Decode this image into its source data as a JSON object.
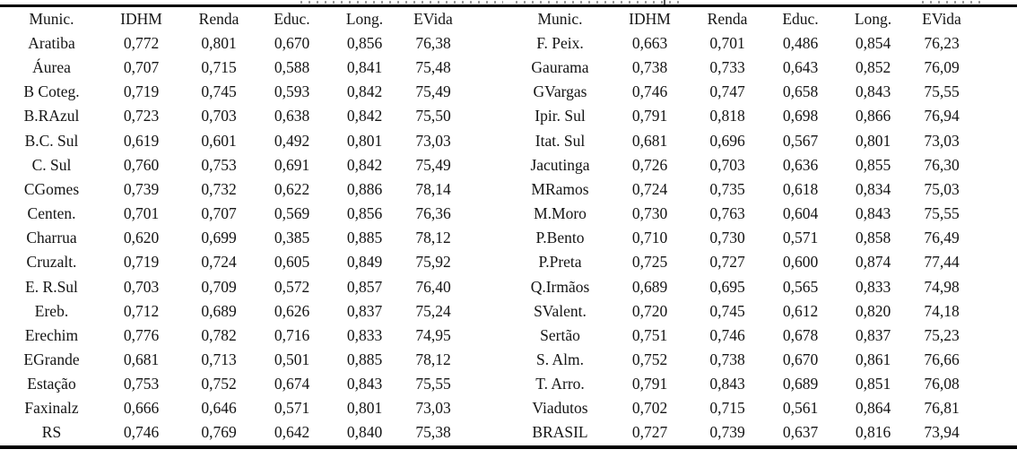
{
  "table": {
    "headers": [
      "Munic.",
      "IDHM",
      "Renda",
      "Educ.",
      "Long.",
      "EVida"
    ],
    "left": [
      [
        "Aratiba",
        "0,772",
        "0,801",
        "0,670",
        "0,856",
        "76,38"
      ],
      [
        "Áurea",
        "0,707",
        "0,715",
        "0,588",
        "0,841",
        "75,48"
      ],
      [
        "B Coteg.",
        "0,719",
        "0,745",
        "0,593",
        "0,842",
        "75,49"
      ],
      [
        "B.RAzul",
        "0,723",
        "0,703",
        "0,638",
        "0,842",
        "75,50"
      ],
      [
        "B.C. Sul",
        "0,619",
        "0,601",
        "0,492",
        "0,801",
        "73,03"
      ],
      [
        "C. Sul",
        "0,760",
        "0,753",
        "0,691",
        "0,842",
        "75,49"
      ],
      [
        "CGomes",
        "0,739",
        "0,732",
        "0,622",
        "0,886",
        "78,14"
      ],
      [
        "Centen.",
        "0,701",
        "0,707",
        "0,569",
        "0,856",
        "76,36"
      ],
      [
        "Charrua",
        "0,620",
        "0,699",
        "0,385",
        "0,885",
        "78,12"
      ],
      [
        "Cruzalt.",
        "0,719",
        "0,724",
        "0,605",
        "0,849",
        "75,92"
      ],
      [
        "E. R.Sul",
        "0,703",
        "0,709",
        "0,572",
        "0,857",
        "76,40"
      ],
      [
        "Ereb.",
        "0,712",
        "0,689",
        "0,626",
        "0,837",
        "75,24"
      ],
      [
        "Erechim",
        "0,776",
        "0,782",
        "0,716",
        "0,833",
        "74,95"
      ],
      [
        "EGrande",
        "0,681",
        "0,713",
        "0,501",
        "0,885",
        "78,12"
      ],
      [
        "Estação",
        "0,753",
        "0,752",
        "0,674",
        "0,843",
        "75,55"
      ],
      [
        "Faxinalz",
        "0,666",
        "0,646",
        "0,571",
        "0,801",
        "73,03"
      ],
      [
        "RS",
        "0,746",
        "0,769",
        "0,642",
        "0,840",
        "75,38"
      ]
    ],
    "right": [
      [
        "F. Peix.",
        "0,663",
        "0,701",
        "0,486",
        "0,854",
        "76,23"
      ],
      [
        "Gaurama",
        "0,738",
        "0,733",
        "0,643",
        "0,852",
        "76,09"
      ],
      [
        "GVargas",
        "0,746",
        "0,747",
        "0,658",
        "0,843",
        "75,55"
      ],
      [
        "Ipir. Sul",
        "0,791",
        "0,818",
        "0,698",
        "0,866",
        "76,94"
      ],
      [
        "Itat. Sul",
        "0,681",
        "0,696",
        "0,567",
        "0,801",
        "73,03"
      ],
      [
        "Jacutinga",
        "0,726",
        "0,703",
        "0,636",
        "0,855",
        "76,30"
      ],
      [
        "MRamos",
        "0,724",
        "0,735",
        "0,618",
        "0,834",
        "75,03"
      ],
      [
        "M.Moro",
        "0,730",
        "0,763",
        "0,604",
        "0,843",
        "75,55"
      ],
      [
        "P.Bento",
        "0,710",
        "0,730",
        "0,571",
        "0,858",
        "76,49"
      ],
      [
        "P.Preta",
        "0,725",
        "0,727",
        "0,600",
        "0,874",
        "77,44"
      ],
      [
        "Q.Irmãos",
        "0,689",
        "0,695",
        "0,565",
        "0,833",
        "74,98"
      ],
      [
        "SValent.",
        "0,720",
        "0,745",
        "0,612",
        "0,820",
        "74,18"
      ],
      [
        "Sertão",
        "0,751",
        "0,746",
        "0,678",
        "0,837",
        "75,23"
      ],
      [
        "S. Alm.",
        "0,752",
        "0,738",
        "0,670",
        "0,861",
        "76,66"
      ],
      [
        "T. Arro.",
        "0,791",
        "0,843",
        "0,689",
        "0,851",
        "76,08"
      ],
      [
        "Viadutos",
        "0,702",
        "0,715",
        "0,561",
        "0,864",
        "76,81"
      ],
      [
        "BRASIL",
        "0,727",
        "0,739",
        "0,637",
        "0,816",
        "73,94"
      ]
    ]
  },
  "colors": {
    "text": "#141414",
    "rule": "#000000",
    "background": "#ffffff"
  }
}
